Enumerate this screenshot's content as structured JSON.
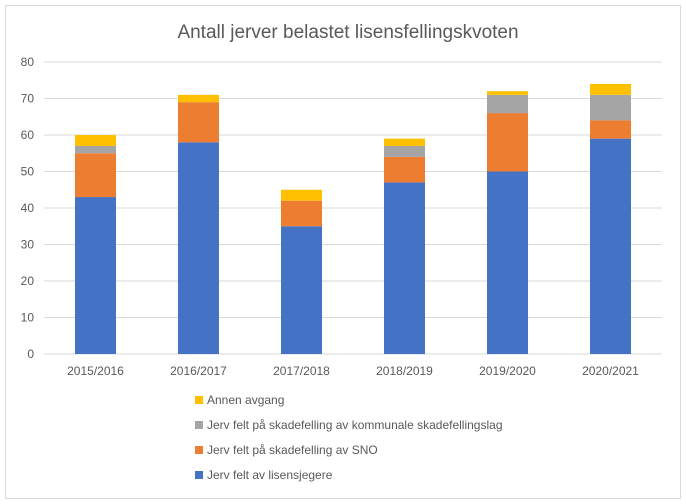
{
  "chart_data": {
    "type": "bar",
    "stacked": true,
    "title": "Antall jerver belastet lisensfellingskvoten",
    "xlabel": "",
    "ylabel": "",
    "categories": [
      "2015/2016",
      "2016/2017",
      "2017/2018",
      "2018/2019",
      "2019/2020",
      "2020/2021"
    ],
    "ylim": [
      0,
      80
    ],
    "yticks": [
      0,
      10,
      20,
      30,
      40,
      50,
      60,
      70,
      80
    ],
    "grid": true,
    "legend_position": "bottom",
    "series": [
      {
        "name": "Jerv felt av lisensjegere",
        "color": "#4472c4",
        "values": [
          43,
          58,
          35,
          47,
          50,
          59
        ]
      },
      {
        "name": "Jerv felt på skadefelling av SNO",
        "color": "#ed7d31",
        "values": [
          12,
          11,
          7,
          7,
          16,
          5
        ]
      },
      {
        "name": "Jerv felt på skadefelling av kommunale skadefellingslag",
        "color": "#a5a5a5",
        "values": [
          2,
          0,
          0,
          3,
          5,
          7
        ]
      },
      {
        "name": "Annen avgang",
        "color": "#ffc000",
        "values": [
          3,
          2,
          3,
          2,
          1,
          3
        ]
      }
    ]
  }
}
